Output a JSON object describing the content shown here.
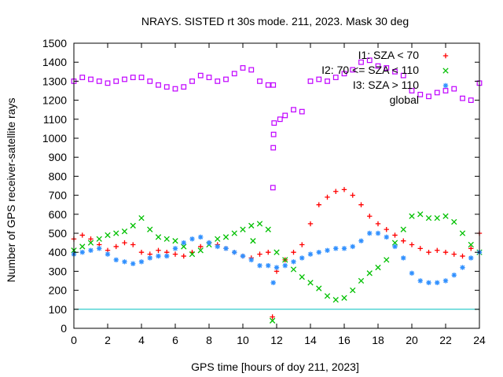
{
  "chart_data": {
    "type": "scatter",
    "title": "NRAYS. SISTED rt 30s mode. 211, 2023. Mask 30 deg",
    "xlabel": "GPS time [hours of doy 211, 2023]",
    "ylabel": "Number of GPS receiver-satellite rays",
    "xlim": [
      0,
      24
    ],
    "ylim": [
      0,
      1500
    ],
    "xticks": [
      0,
      2,
      4,
      6,
      8,
      10,
      12,
      14,
      16,
      18,
      20,
      22,
      24
    ],
    "yticks": [
      0,
      100,
      200,
      300,
      400,
      500,
      600,
      700,
      800,
      900,
      1000,
      1100,
      1200,
      1300,
      1400,
      1500
    ],
    "threshold_line": {
      "y": 100,
      "color": "#00c0c0"
    },
    "legend_position": "top-right",
    "series": [
      {
        "name": "I1: SZA < 70",
        "marker": "plus",
        "color": "#ff0000",
        "x": [
          0,
          0.5,
          1,
          1.5,
          2,
          2.5,
          3,
          3.5,
          4,
          4.5,
          5,
          5.5,
          6,
          6.5,
          7,
          7.5,
          8,
          8.5,
          9,
          9.5,
          10,
          10.5,
          11,
          11.5,
          12,
          12.5,
          13,
          13.5,
          14,
          14.5,
          15,
          15.5,
          16,
          16.5,
          17,
          17.5,
          18,
          18.5,
          19,
          19.5,
          20,
          20.5,
          21,
          21.5,
          22,
          22.5,
          23,
          23.5,
          24
        ],
        "y": [
          470,
          490,
          470,
          440,
          410,
          430,
          450,
          440,
          400,
          390,
          410,
          400,
          390,
          380,
          400,
          430,
          450,
          440,
          420,
          400,
          380,
          370,
          390,
          400,
          300,
          360,
          400,
          440,
          550,
          650,
          690,
          720,
          730,
          700,
          650,
          590,
          550,
          520,
          490,
          460,
          440,
          420,
          400,
          410,
          400,
          390,
          380,
          420,
          500
        ]
      },
      {
        "name": "I2: 70 <= SZA < 110",
        "marker": "cross",
        "color": "#00c000",
        "x": [
          0,
          0.5,
          1,
          1.5,
          2,
          2.5,
          3,
          3.5,
          4,
          4.5,
          5,
          5.5,
          6,
          6.5,
          7,
          7.5,
          8,
          8.5,
          9,
          9.5,
          10,
          10.5,
          11,
          11.5,
          12,
          12.5,
          13,
          13.5,
          14,
          14.5,
          15,
          15.5,
          16,
          16.5,
          17,
          17.5,
          18,
          18.5,
          19,
          19.5,
          20,
          20.5,
          21,
          21.5,
          22,
          22.5,
          23,
          23.5,
          24
        ],
        "y": [
          410,
          430,
          450,
          470,
          490,
          500,
          510,
          540,
          580,
          520,
          480,
          470,
          460,
          430,
          390,
          410,
          440,
          470,
          480,
          500,
          520,
          540,
          550,
          520,
          400,
          360,
          310,
          270,
          240,
          210,
          170,
          150,
          160,
          200,
          250,
          290,
          320,
          360,
          450,
          520,
          590,
          600,
          580,
          580,
          590,
          560,
          500,
          440,
          400
        ]
      },
      {
        "name": "I3: SZA > 110",
        "marker": "star",
        "color": "#3090ff",
        "x": [
          0,
          0.5,
          1,
          1.5,
          2,
          2.5,
          3,
          3.5,
          4,
          4.5,
          5,
          5.5,
          6,
          6.5,
          7,
          7.5,
          8,
          8.5,
          9,
          9.5,
          10,
          10.5,
          11,
          11.5,
          12,
          12.5,
          13,
          13.5,
          14,
          14.5,
          15,
          15.5,
          16,
          16.5,
          17,
          17.5,
          18,
          18.5,
          19,
          19.5,
          20,
          20.5,
          21,
          21.5,
          22,
          22.5,
          23,
          23.5,
          24
        ],
        "y": [
          390,
          400,
          410,
          420,
          390,
          360,
          350,
          340,
          350,
          370,
          380,
          380,
          420,
          450,
          470,
          480,
          450,
          430,
          420,
          400,
          380,
          360,
          330,
          330,
          320,
          330,
          350,
          370,
          390,
          400,
          410,
          420,
          420,
          430,
          460,
          500,
          500,
          480,
          430,
          370,
          290,
          250,
          240,
          240,
          250,
          280,
          320,
          370,
          400
        ]
      },
      {
        "name": "global",
        "marker": "square",
        "color": "#c000ff",
        "x": [
          0,
          0.5,
          1,
          1.5,
          2,
          2.5,
          3,
          3.5,
          4,
          4.5,
          5,
          5.5,
          6,
          6.5,
          7,
          7.5,
          8,
          8.5,
          9,
          9.5,
          10,
          10.5,
          11,
          11.5,
          11.8,
          12.2,
          12.5,
          13,
          13.5,
          14,
          14.5,
          15,
          15.5,
          16,
          16.5,
          17,
          17.5,
          18,
          18.5,
          19,
          19.5,
          20,
          20.5,
          21,
          21.5,
          22,
          22.5,
          23,
          23.5,
          24
        ],
        "y": [
          1300,
          1320,
          1310,
          1300,
          1290,
          1300,
          1310,
          1320,
          1320,
          1300,
          1280,
          1270,
          1260,
          1270,
          1300,
          1330,
          1320,
          1300,
          1310,
          1340,
          1370,
          1360,
          1300,
          1280,
          1280,
          1100,
          1120,
          1150,
          1140,
          1300,
          1310,
          1300,
          1320,
          1340,
          1360,
          1400,
          1410,
          1380,
          1370,
          1350,
          1330,
          1250,
          1230,
          1220,
          1240,
          1250,
          1260,
          1210,
          1200,
          1290
        ]
      }
    ],
    "outliers": [
      {
        "series": "global",
        "x": [
          11.78,
          11.8,
          11.82,
          11.85
        ],
        "y": [
          740,
          950,
          1020,
          1080
        ]
      },
      {
        "series": "I1: SZA < 70",
        "x": [
          11.75
        ],
        "y": [
          60
        ]
      },
      {
        "series": "I2: 70 <= SZA < 110",
        "x": [
          11.75,
          10.6
        ],
        "y": [
          40,
          460
        ]
      },
      {
        "series": "I3: SZA > 110",
        "x": [
          11.8
        ],
        "y": [
          240
        ]
      }
    ]
  }
}
